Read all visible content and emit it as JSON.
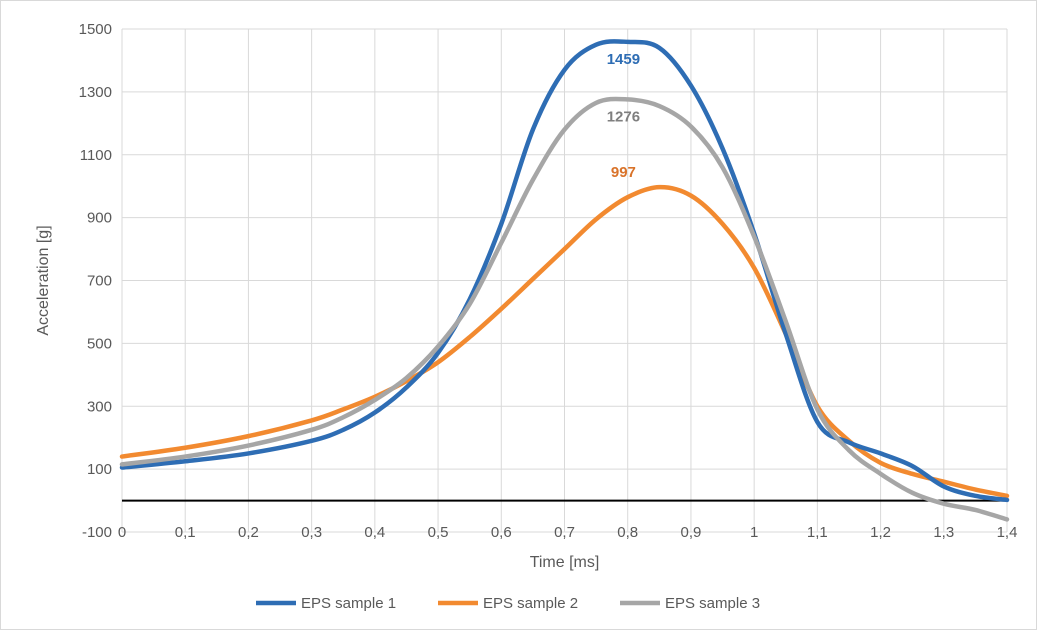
{
  "chart_data": {
    "type": "line",
    "xlabel": "Time [ms]",
    "ylabel": "Acceleration [g]",
    "xlim": [
      0,
      1.4
    ],
    "ylim": [
      -100,
      1500
    ],
    "x_ticks": [
      0,
      0.1,
      0.2,
      0.3,
      0.4,
      0.5,
      0.6,
      0.7,
      0.8,
      0.9,
      1,
      1.1,
      1.2,
      1.3,
      1.4
    ],
    "x_tick_labels": [
      "0",
      "0,1",
      "0,2",
      "0,3",
      "0,4",
      "0,5",
      "0,6",
      "0,7",
      "0,8",
      "0,9",
      "1",
      "1,1",
      "1,2",
      "1,3",
      "1,4"
    ],
    "y_ticks": [
      -100,
      100,
      300,
      500,
      700,
      900,
      1100,
      1300,
      1500
    ],
    "y_tick_labels": [
      "-100",
      "100",
      "300",
      "500",
      "700",
      "900",
      "1100",
      "1300",
      "1500"
    ],
    "grid": true,
    "zero_line": true,
    "legend_position": "bottom",
    "series": [
      {
        "name": "EPS sample 1",
        "color": "#2e6db4",
        "x": [
          0,
          0.1,
          0.2,
          0.3,
          0.35,
          0.4,
          0.45,
          0.5,
          0.55,
          0.6,
          0.65,
          0.7,
          0.75,
          0.8,
          0.85,
          0.9,
          0.95,
          1.0,
          1.05,
          1.1,
          1.15,
          1.2,
          1.25,
          1.3,
          1.35,
          1.4
        ],
        "y": [
          105,
          125,
          150,
          190,
          225,
          280,
          360,
          470,
          640,
          880,
          1180,
          1370,
          1450,
          1459,
          1440,
          1320,
          1120,
          850,
          530,
          250,
          185,
          150,
          110,
          45,
          15,
          2
        ]
      },
      {
        "name": "EPS sample 2",
        "color": "#f28a30",
        "x": [
          0,
          0.1,
          0.2,
          0.3,
          0.35,
          0.4,
          0.45,
          0.5,
          0.55,
          0.6,
          0.65,
          0.7,
          0.75,
          0.8,
          0.85,
          0.9,
          0.95,
          1.0,
          1.05,
          1.1,
          1.15,
          1.2,
          1.25,
          1.3,
          1.35,
          1.4
        ],
        "y": [
          140,
          168,
          205,
          255,
          290,
          330,
          380,
          440,
          520,
          610,
          705,
          800,
          895,
          965,
          997,
          970,
          880,
          740,
          530,
          300,
          190,
          120,
          85,
          60,
          35,
          15
        ]
      },
      {
        "name": "EPS sample 3",
        "color": "#a6a6a6",
        "x": [
          0,
          0.1,
          0.2,
          0.3,
          0.35,
          0.4,
          0.45,
          0.5,
          0.55,
          0.6,
          0.65,
          0.7,
          0.75,
          0.8,
          0.85,
          0.9,
          0.95,
          1.0,
          1.05,
          1.1,
          1.15,
          1.2,
          1.25,
          1.3,
          1.35,
          1.4
        ],
        "y": [
          115,
          140,
          175,
          225,
          265,
          320,
          390,
          490,
          625,
          820,
          1020,
          1180,
          1265,
          1276,
          1255,
          1190,
          1060,
          840,
          570,
          290,
          160,
          85,
          25,
          -10,
          -30,
          -60
        ]
      }
    ],
    "annotations": [
      {
        "text": "1459",
        "x": 0.79,
        "y": 1459,
        "color": "#2e6db4"
      },
      {
        "text": "1276",
        "x": 0.79,
        "y": 1276,
        "color": "#7f7f7f"
      },
      {
        "text": "997",
        "x": 0.79,
        "y": 997,
        "color": "#d9732a"
      }
    ]
  }
}
